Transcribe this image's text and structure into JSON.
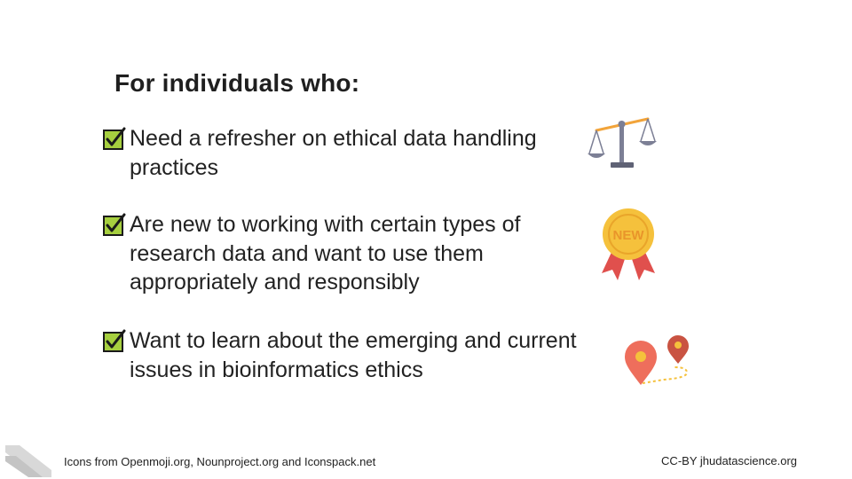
{
  "title": "For individuals who:",
  "items": [
    {
      "text": " Need a refresher on ethical data handling practices",
      "icon": "balance-scale-icon"
    },
    {
      "text": "Are new to working with certain types of research data and want to use them appropriately and responsibly",
      "icon": "new-badge-icon"
    },
    {
      "text": "Want to learn about the emerging and current issues in bioinformatics ethics",
      "icon": "map-route-icon"
    }
  ],
  "badge_label": "NEW",
  "footer": {
    "left": "Icons from Openmoji.org, Nounproject.org and Iconspack.net",
    "right": "CC-BY jhudatascience.org"
  },
  "colors": {
    "check_green": "#a6cf3f",
    "badge_gold": "#f5c13c",
    "ribbon_red": "#e0504d",
    "pin_red": "#ee6e5c",
    "scale_gray": "#7c7f95",
    "scale_orange": "#f2a43a"
  }
}
